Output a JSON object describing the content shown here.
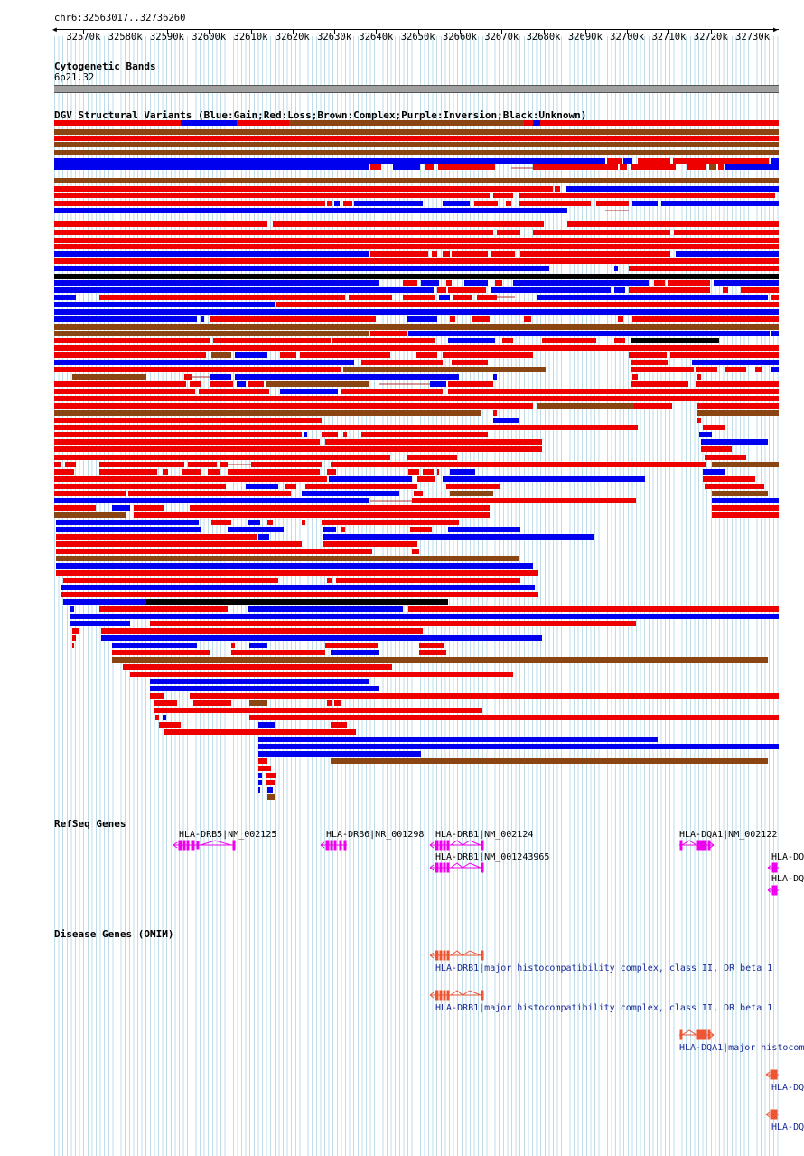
{
  "locus": "chr6:32563017..32736260",
  "ruler": {
    "start": 32563017,
    "end": 32736260,
    "ticks": [
      "32570k",
      "32580k",
      "32590k",
      "32600k",
      "32610k",
      "32620k",
      "32630k",
      "32640k",
      "32650k",
      "32660k",
      "32670k",
      "32680k",
      "32690k",
      "32700k",
      "32710k",
      "32720k",
      "32730k"
    ]
  },
  "cyto": {
    "title": "Cytogenetic Bands",
    "band": "6p21.32"
  },
  "dgv": {
    "title": "DGV Structural Variants (Blue:Gain;Red:Loss;Brown:Complex;Purple:Inversion;Black:Unknown)",
    "colors": {
      "gain": "#0000ee",
      "loss": "#ee0000",
      "complex": "#8b4513",
      "unknown": "#000000",
      "link": "#b03030"
    }
  },
  "refseq": {
    "title": "RefSeq Genes",
    "genes": [
      {
        "label": "HLA-DRB5|NM_002125"
      },
      {
        "label": "HLA-DRB6|NR_001298"
      },
      {
        "label": "HLA-DRB1|NM_002124"
      },
      {
        "label": "HLA-DRB1|NM_001243965"
      },
      {
        "label": "HLA-DQA1|NM_002122"
      },
      {
        "label": "HLA-DQ"
      },
      {
        "label": "HLA-DQ"
      }
    ],
    "color": "#ee00ee"
  },
  "omim": {
    "title": "Disease Genes (OMIM)",
    "genes": [
      {
        "label": "HLA-DRB1|major histocompatibility complex, class II, DR beta 1"
      },
      {
        "label": "HLA-DRB1|major histocompatibility complex, class II, DR beta 1"
      },
      {
        "label": "HLA-DQA1|major histocom"
      },
      {
        "label": "HLA-DQ"
      },
      {
        "label": "HLA-DQ"
      }
    ],
    "color": "#ee5533"
  }
}
